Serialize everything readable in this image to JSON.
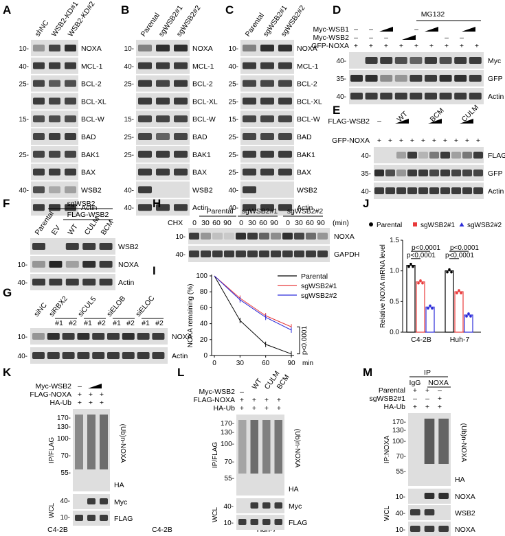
{
  "panels": {
    "A": {
      "letter": "A",
      "lanes": [
        "shNC",
        "WSB2-KD#1",
        "WSB2-KD#2"
      ],
      "mw": [
        "10-",
        "40-",
        "25-",
        "",
        "15-",
        "",
        "25-",
        "",
        "40-",
        ""
      ],
      "bands": [
        "NOXA",
        "MCL-1",
        "BCL-2",
        "BCL-XL",
        "BCL-W",
        "BAD",
        "BAK1",
        "BAX",
        "WSB2",
        "Actin"
      ],
      "cell": "C4-2B"
    },
    "B": {
      "letter": "B",
      "lanes": [
        "Parental",
        "sgWSB2#1",
        "sgWSB2#2"
      ],
      "mw": [
        "10-",
        "40-",
        "25-",
        "",
        "15-",
        "25-",
        "25-",
        "",
        "40-",
        "40-"
      ],
      "bands": [
        "NOXA",
        "MCL-1",
        "BCL-2",
        "BCL-XL",
        "BCL-W",
        "BAD",
        "BAK1",
        "BAX",
        "WSB2",
        "Actin"
      ],
      "cell": "C4-2B"
    },
    "C": {
      "letter": "C",
      "lanes": [
        "Parental",
        "sgWSB2#1",
        "sgWSB2#2"
      ],
      "mw": [
        "10-",
        "40-",
        "25-",
        "25-",
        "15-",
        "25-",
        "25-",
        "25-",
        "40-",
        "40-"
      ],
      "bands": [
        "NOXA",
        "MCL-1",
        "BCL-2",
        "BCL-XL",
        "BCL-W",
        "BAD",
        "BAK1",
        "BAX",
        "WSB2",
        "Actin"
      ],
      "cell": "Huh-7"
    },
    "D": {
      "letter": "D",
      "treatment": "MG132",
      "rows": [
        "Myc-WSB1",
        "Myc-WSB2",
        "GFP-NOXA"
      ],
      "mw": [
        "40-",
        "35-",
        "40-"
      ],
      "bands": [
        "Myc",
        "GFP",
        "Actin"
      ]
    },
    "E": {
      "letter": "E",
      "rows": [
        "FLAG-WSB2",
        "GFP-NOXA"
      ],
      "groups": [
        "WT",
        "BCM",
        "CULM"
      ],
      "mw": [
        "40-",
        "35-",
        "40-"
      ],
      "bands": [
        "FLAG",
        "GFP",
        "Actin"
      ]
    },
    "F": {
      "letter": "F",
      "group_top": "sgWSB2",
      "group_sub": "FLAG-WSB2",
      "lanes": [
        "Parental",
        "EV",
        "WT",
        "CULM",
        "BCM"
      ],
      "mw": [
        "",
        "10-",
        "40-"
      ],
      "bands": [
        "WSB2",
        "NOXA",
        "Actin"
      ]
    },
    "G": {
      "letter": "G",
      "groups": [
        "siNC",
        "siRBX2",
        "siCUL5",
        "siELOB",
        "siELOC"
      ],
      "reps": [
        "#1",
        "#2"
      ],
      "mw": [
        "10-",
        "40-"
      ],
      "bands": [
        "NOXA",
        "Actin"
      ]
    },
    "H": {
      "letter": "H",
      "groups": [
        "Parental",
        "sgWSB2#1",
        "sgWSB2#2"
      ],
      "chx_label": "CHX",
      "times": [
        "0",
        "30",
        "60",
        "90"
      ],
      "unit": "(min)",
      "mw": [
        "10-",
        "40-"
      ],
      "bands": [
        "NOXA",
        "GAPDH"
      ]
    },
    "I": {
      "letter": "I",
      "pvalue": "p<0.0001"
    },
    "J": {
      "letter": "J",
      "p_labels": [
        "p<0.0001",
        "p<0.0001",
        "p<0.0001",
        "p<0.0001"
      ]
    },
    "K": {
      "letter": "K",
      "rows": [
        "Myc-WSB2",
        "FLAG-NOXA",
        "HA-Ub"
      ],
      "mw": [
        "170-",
        "130-",
        "100-",
        "70-",
        "55-",
        "40-",
        "10-"
      ],
      "ip": "IP/FLAG",
      "wcl": "WCL",
      "ub": "(Ub)n-NOXA",
      "ha": "HA",
      "wcl_bands": [
        "Myc",
        "FLAG"
      ]
    },
    "L": {
      "letter": "L",
      "rows": [
        "Myc-WSB2",
        "FLAG-NOXA",
        "HA-Ub"
      ],
      "lanes": [
        "WT",
        "CULM",
        "BCM"
      ],
      "mw": [
        "170-",
        "130-",
        "100-",
        "70-",
        "55-",
        "40-",
        "10-"
      ],
      "ip": "IP/FLAG",
      "wcl": "WCL",
      "ub": "(Ub)n-NOXA",
      "ha": "HA",
      "wcl_bands": [
        "Myc",
        "FLAG"
      ]
    },
    "M": {
      "letter": "M",
      "ip_top": "IP",
      "lanes": [
        "IgG",
        "NOXA"
      ],
      "rows": [
        "Parental",
        "sgWSB2#1",
        "HA-Ub"
      ],
      "mw": [
        "170-",
        "130-",
        "100-",
        "70-",
        "55-",
        "10-",
        "40-",
        "10-"
      ],
      "ip": "IP:NOXA",
      "wcl": "WCL",
      "ub": "(Ub)n-NOXA",
      "ha": "HA",
      "wcl_bands": [
        "NOXA",
        "WSB2",
        "NOXA"
      ]
    }
  },
  "chart_data": [
    {
      "type": "line",
      "panel": "I",
      "title": "",
      "xlabel": "min",
      "ylabel": "NOXA remaining (%)",
      "x": [
        0,
        30,
        60,
        90
      ],
      "xticks": [
        "0",
        "30",
        "60",
        "90"
      ],
      "yticks": [
        "0",
        "20",
        "40",
        "60",
        "80",
        "100"
      ],
      "ylim": [
        0,
        100
      ],
      "legend": "top-right",
      "series": [
        {
          "name": "Parental",
          "values": [
            100,
            44,
            14,
            2
          ],
          "color": "#000000"
        },
        {
          "name": "sgWSB2#1",
          "values": [
            100,
            72,
            50,
            36
          ],
          "color": "#e8393a"
        },
        {
          "name": "sgWSB2#2",
          "values": [
            100,
            70,
            48,
            32
          ],
          "color": "#2b2bd9"
        }
      ]
    },
    {
      "type": "bar",
      "panel": "J",
      "title": "",
      "xlabel": "",
      "ylabel": "Relative NOXA mRNA level",
      "categories": [
        "C4-2B",
        "Huh-7"
      ],
      "yticks": [
        "0.0",
        "0.5",
        "1.0",
        "1.5"
      ],
      "ylim": [
        0,
        1.5
      ],
      "legend": "top",
      "series": [
        {
          "name": "Parental",
          "values": [
            1.09,
            1.0
          ],
          "color": "#000000"
        },
        {
          "name": "sgWSB2#1",
          "values": [
            0.82,
            0.66
          ],
          "color": "#e8393a"
        },
        {
          "name": "sgWSB2#2",
          "values": [
            0.41,
            0.28
          ],
          "color": "#2b2bd9"
        }
      ]
    }
  ]
}
